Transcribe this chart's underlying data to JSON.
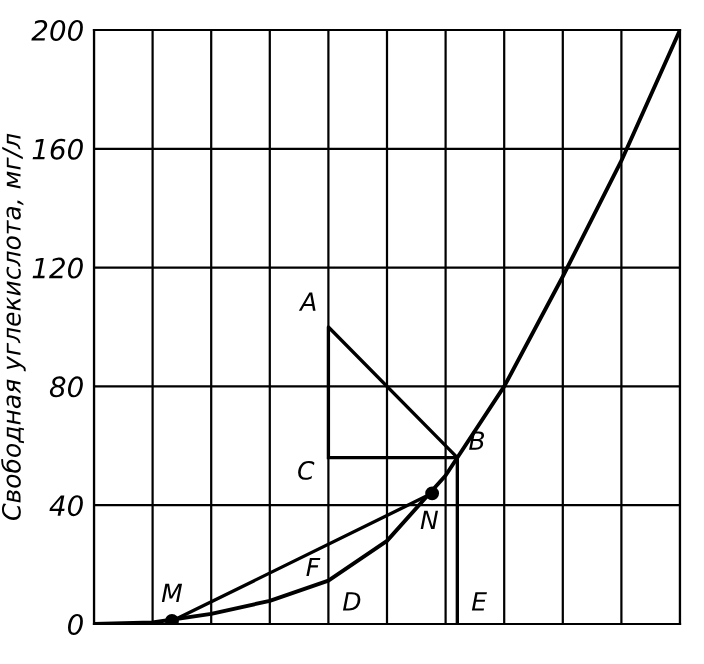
{
  "chart_data": {
    "type": "line",
    "ylabel": "Свободная углекислота, мг/л",
    "categories": [
      null,
      null,
      null,
      null,
      null,
      null,
      null,
      null,
      null,
      null,
      null
    ],
    "ylim": [
      0,
      200
    ],
    "yticks": [
      0,
      40,
      80,
      120,
      160,
      200
    ],
    "grid": true,
    "series": [
      {
        "color": "#000000",
        "values": [
          0,
          0.5,
          3.4,
          7.8,
          14.6,
          28,
          50,
          80,
          117,
          156,
          200
        ]
      }
    ],
    "annotations": [
      "A",
      "B",
      "C",
      "D",
      "E",
      "F",
      "M",
      "N"
    ]
  }
}
